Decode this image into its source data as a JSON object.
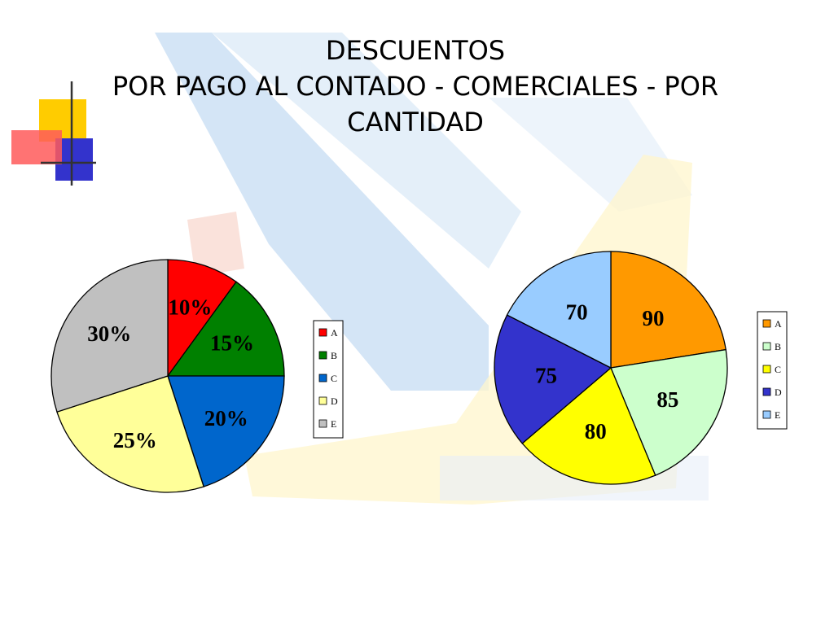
{
  "slide": {
    "title_line1": "DESCUENTOS",
    "title_line2": "POR PAGO AL CONTADO - COMERCIALES - POR",
    "title_line3": "CANTIDAD"
  },
  "chart_data": [
    {
      "type": "pie",
      "categories": [
        "A",
        "B",
        "C",
        "D",
        "E"
      ],
      "values": [
        10,
        15,
        20,
        25,
        30
      ],
      "labels": [
        "10%",
        "15%",
        "20%",
        "25%",
        "30%"
      ],
      "colors": [
        "#ff0000",
        "#008000",
        "#0066cc",
        "#ffff99",
        "#c0c0c0"
      ],
      "legend": "right"
    },
    {
      "type": "pie",
      "categories": [
        "A",
        "B",
        "C",
        "D",
        "E"
      ],
      "values": [
        90,
        85,
        80,
        75,
        70
      ],
      "labels": [
        "90",
        "85",
        "80",
        "75",
        "70"
      ],
      "colors": [
        "#ff9900",
        "#ccffcc",
        "#ffff00",
        "#3333cc",
        "#99ccff"
      ],
      "legend": "right"
    }
  ]
}
